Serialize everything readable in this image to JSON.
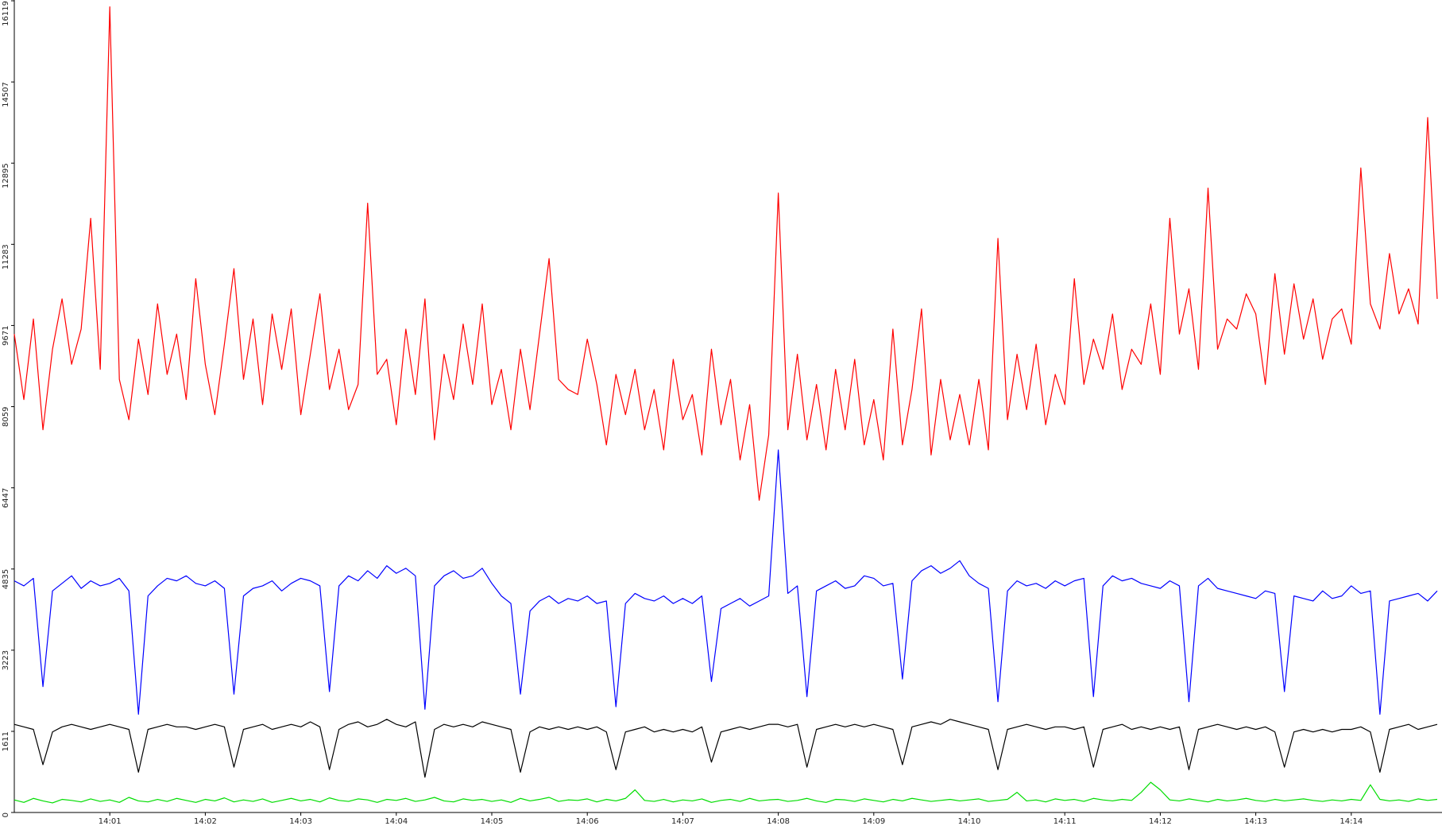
{
  "chart_data": {
    "type": "line",
    "x": [
      0,
      6,
      12,
      18,
      24,
      30,
      36,
      42,
      48,
      54,
      60,
      66,
      72,
      78,
      84,
      90,
      96,
      102,
      108,
      114,
      120,
      126,
      132,
      138,
      144,
      150,
      156,
      162,
      168,
      174,
      180,
      186,
      192,
      198,
      204,
      210,
      216,
      222,
      228,
      234,
      240,
      246,
      252,
      258,
      264,
      270,
      276,
      282,
      288,
      294,
      300,
      306,
      312,
      318,
      324,
      330,
      336,
      342,
      348,
      354,
      360,
      366,
      372,
      378,
      384,
      390,
      396,
      402,
      408,
      414,
      420,
      426,
      432,
      438,
      444,
      450,
      456,
      462,
      468,
      474,
      480,
      486,
      492,
      498,
      504,
      510,
      516,
      522,
      528,
      534,
      540,
      546,
      552,
      558,
      564,
      570,
      576,
      582,
      588,
      594,
      600,
      606,
      612,
      618,
      624,
      630,
      636,
      642,
      648,
      654,
      660,
      666,
      672,
      678,
      684,
      690,
      696,
      702,
      708,
      714,
      720,
      726,
      732,
      738,
      744,
      750,
      756,
      762,
      768,
      774,
      780,
      786,
      792,
      798,
      804,
      810,
      816,
      822,
      828,
      834,
      840,
      846,
      852,
      858,
      864,
      870,
      876,
      882,
      888,
      894
    ],
    "series": [
      {
        "name": "red",
        "color": "#ff0000",
        "values": [
          9500,
          8200,
          9800,
          7600,
          9200,
          10200,
          8900,
          9600,
          11800,
          8800,
          16000,
          8600,
          7800,
          9400,
          8300,
          10100,
          8700,
          9500,
          8200,
          10600,
          8900,
          7900,
          9300,
          10800,
          8600,
          9800,
          8100,
          9900,
          8800,
          10000,
          7900,
          9100,
          10300,
          8400,
          9200,
          8000,
          8500,
          12100,
          8700,
          9000,
          7700,
          9600,
          8300,
          10200,
          7400,
          9100,
          8200,
          9700,
          8500,
          10100,
          8100,
          8800,
          7600,
          9200,
          8000,
          9500,
          11000,
          8600,
          8400,
          8300,
          9400,
          8500,
          7300,
          8700,
          7900,
          8800,
          7600,
          8400,
          7200,
          9000,
          7800,
          8300,
          7100,
          9200,
          7700,
          8600,
          7000,
          8100,
          6200,
          7500,
          12300,
          7600,
          9100,
          7400,
          8500,
          7200,
          8800,
          7600,
          9000,
          7300,
          8200,
          7000,
          9600,
          7300,
          8400,
          10000,
          7100,
          8600,
          7400,
          8300,
          7300,
          8600,
          7200,
          11400,
          7800,
          9100,
          8000,
          9300,
          7700,
          8700,
          8100,
          10600,
          8500,
          9400,
          8800,
          9900,
          8400,
          9200,
          8900,
          10100,
          8700,
          11800,
          9500,
          10400,
          8800,
          12400,
          9200,
          9800,
          9600,
          10300,
          9900,
          8500,
          10700,
          9100,
          10500,
          9400,
          10200,
          9000,
          9800,
          10000,
          9300,
          12800,
          10100,
          9600,
          11100,
          9900,
          10400,
          9700,
          13800,
          10200
        ]
      },
      {
        "name": "blue",
        "color": "#0000ff",
        "values": [
          4600,
          4500,
          4650,
          2500,
          4400,
          4550,
          4700,
          4450,
          4600,
          4500,
          4550,
          4650,
          4400,
          1950,
          4300,
          4500,
          4650,
          4600,
          4700,
          4550,
          4500,
          4600,
          4450,
          2350,
          4300,
          4450,
          4500,
          4600,
          4400,
          4550,
          4650,
          4600,
          4500,
          2400,
          4500,
          4700,
          4600,
          4800,
          4650,
          4900,
          4750,
          4850,
          4700,
          2050,
          4500,
          4700,
          4800,
          4650,
          4700,
          4850,
          4550,
          4300,
          4150,
          2350,
          4000,
          4200,
          4300,
          4150,
          4250,
          4200,
          4300,
          4150,
          4200,
          2100,
          4150,
          4350,
          4250,
          4200,
          4300,
          4150,
          4250,
          4150,
          4300,
          2600,
          4050,
          4150,
          4250,
          4100,
          4200,
          4300,
          7200,
          4350,
          4500,
          2300,
          4400,
          4500,
          4600,
          4450,
          4500,
          4700,
          4650,
          4500,
          4550,
          2650,
          4600,
          4800,
          4900,
          4750,
          4850,
          5000,
          4700,
          4550,
          4450,
          2200,
          4400,
          4600,
          4500,
          4550,
          4450,
          4600,
          4500,
          4600,
          4650,
          2300,
          4500,
          4700,
          4600,
          4650,
          4550,
          4500,
          4450,
          4600,
          4500,
          2200,
          4500,
          4650,
          4450,
          4400,
          4350,
          4300,
          4250,
          4400,
          4350,
          2400,
          4300,
          4250,
          4200,
          4400,
          4250,
          4300,
          4500,
          4350,
          4400,
          1950,
          4200,
          4250,
          4300,
          4350,
          4200,
          4400
        ]
      },
      {
        "name": "black",
        "color": "#000000",
        "values": [
          1750,
          1700,
          1650,
          950,
          1600,
          1700,
          1750,
          1700,
          1650,
          1700,
          1750,
          1700,
          1650,
          800,
          1650,
          1700,
          1750,
          1700,
          1700,
          1650,
          1700,
          1750,
          1700,
          900,
          1650,
          1700,
          1750,
          1650,
          1700,
          1750,
          1700,
          1800,
          1700,
          850,
          1650,
          1750,
          1800,
          1700,
          1750,
          1850,
          1750,
          1700,
          1800,
          700,
          1650,
          1750,
          1700,
          1750,
          1700,
          1800,
          1750,
          1700,
          1650,
          800,
          1600,
          1700,
          1650,
          1700,
          1650,
          1700,
          1650,
          1700,
          1600,
          850,
          1600,
          1650,
          1700,
          1600,
          1650,
          1600,
          1650,
          1600,
          1700,
          1000,
          1600,
          1650,
          1700,
          1650,
          1700,
          1750,
          1750,
          1700,
          1750,
          900,
          1650,
          1700,
          1750,
          1700,
          1750,
          1700,
          1750,
          1700,
          1650,
          950,
          1700,
          1750,
          1800,
          1750,
          1850,
          1800,
          1750,
          1700,
          1650,
          850,
          1650,
          1700,
          1750,
          1700,
          1650,
          1700,
          1700,
          1650,
          1700,
          900,
          1650,
          1700,
          1750,
          1650,
          1700,
          1650,
          1700,
          1650,
          1700,
          850,
          1650,
          1700,
          1750,
          1700,
          1650,
          1700,
          1650,
          1700,
          1600,
          900,
          1600,
          1650,
          1600,
          1650,
          1600,
          1650,
          1650,
          1700,
          1600,
          800,
          1650,
          1700,
          1750,
          1650,
          1700,
          1750
        ]
      },
      {
        "name": "green",
        "color": "#00dd00",
        "values": [
          250,
          200,
          280,
          230,
          190,
          260,
          240,
          210,
          270,
          220,
          250,
          200,
          300,
          230,
          210,
          260,
          220,
          280,
          240,
          200,
          260,
          230,
          290,
          210,
          250,
          220,
          270,
          200,
          240,
          280,
          230,
          260,
          210,
          290,
          240,
          220,
          270,
          250,
          200,
          260,
          240,
          280,
          220,
          250,
          300,
          230,
          210,
          270,
          240,
          260,
          220,
          250,
          200,
          280,
          230,
          260,
          300,
          220,
          250,
          240,
          270,
          210,
          260,
          230,
          280,
          450,
          240,
          220,
          260,
          210,
          250,
          230,
          270,
          200,
          240,
          260,
          220,
          280,
          230,
          250,
          260,
          220,
          240,
          280,
          230,
          200,
          260,
          250,
          220,
          270,
          240,
          210,
          260,
          230,
          280,
          250,
          220,
          240,
          260,
          230,
          250,
          270,
          220,
          240,
          260,
          400,
          230,
          250,
          210,
          270,
          240,
          260,
          220,
          280,
          250,
          230,
          260,
          240,
          400,
          600,
          450,
          250,
          230,
          270,
          240,
          210,
          260,
          230,
          250,
          280,
          240,
          220,
          260,
          230,
          250,
          270,
          240,
          220,
          250,
          230,
          260,
          240,
          550,
          260,
          230,
          250,
          220,
          270,
          240,
          260
        ]
      }
    ],
    "xlim": [
      0,
      897
    ],
    "ylim": [
      0,
      16119
    ],
    "xticks": [
      {
        "value": 60,
        "label": "14:01"
      },
      {
        "value": 120,
        "label": "14:02"
      },
      {
        "value": 180,
        "label": "14:03"
      },
      {
        "value": 240,
        "label": "14:04"
      },
      {
        "value": 300,
        "label": "14:05"
      },
      {
        "value": 360,
        "label": "14:06"
      },
      {
        "value": 420,
        "label": "14:07"
      },
      {
        "value": 480,
        "label": "14:08"
      },
      {
        "value": 540,
        "label": "14:09"
      },
      {
        "value": 600,
        "label": "14:10"
      },
      {
        "value": 660,
        "label": "14:11"
      },
      {
        "value": 720,
        "label": "14:12"
      },
      {
        "value": 780,
        "label": "14:13"
      },
      {
        "value": 840,
        "label": "14:14"
      }
    ],
    "yticks": [
      0,
      1611,
      3223,
      4835,
      6447,
      8059,
      9671,
      11283,
      12895,
      14507,
      16119
    ]
  }
}
